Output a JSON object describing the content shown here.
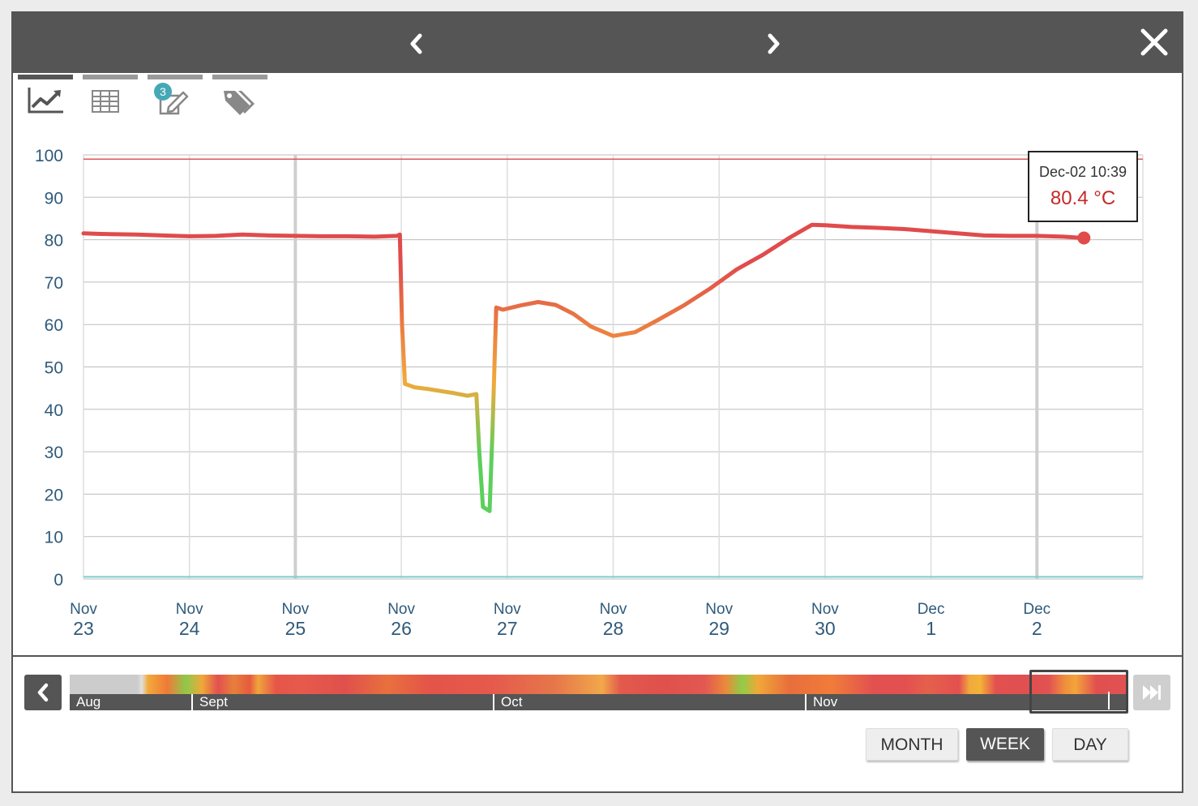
{
  "toolbar": {
    "prev_icon": "chevron-left-icon",
    "next_icon": "chevron-right-icon",
    "close_icon": "close-icon"
  },
  "tabs": [
    {
      "name": "chart",
      "icon": "line-chart-icon",
      "active": true
    },
    {
      "name": "table",
      "icon": "table-icon",
      "active": false
    },
    {
      "name": "notes",
      "icon": "edit-icon",
      "badge": "3",
      "active": false
    },
    {
      "name": "tags",
      "icon": "tags-icon",
      "active": false
    }
  ],
  "tooltip": {
    "date": "Dec-02 10:39",
    "value": "80.4 °C"
  },
  "chart_data": {
    "type": "line",
    "y_ticks": [
      "100",
      "90",
      "80",
      "70",
      "60",
      "50",
      "40",
      "30",
      "20",
      "10",
      "0"
    ],
    "ylim": [
      0,
      100
    ],
    "x_ticks": [
      {
        "month": "Nov",
        "day": "23"
      },
      {
        "month": "Nov",
        "day": "24"
      },
      {
        "month": "Nov",
        "day": "25"
      },
      {
        "month": "Nov",
        "day": "26"
      },
      {
        "month": "Nov",
        "day": "27"
      },
      {
        "month": "Nov",
        "day": "28"
      },
      {
        "month": "Nov",
        "day": "29"
      },
      {
        "month": "Nov",
        "day": "30"
      },
      {
        "month": "Dec",
        "day": "1"
      },
      {
        "month": "Dec",
        "day": "2"
      }
    ],
    "upper_threshold": 99,
    "lower_threshold": 0.5,
    "threshold_colors": {
      "upper": "#e05555",
      "lower": "#7ccfcf"
    },
    "color_scale": {
      "high": "#e04b4b",
      "mid": "#f2a93b",
      "low": "#5ccf5c"
    },
    "series": [
      {
        "unit": "°C",
        "points": [
          [
            "Nov 23 00:00",
            81.5
          ],
          [
            "Nov 23 06:00",
            81.3
          ],
          [
            "Nov 23 12:00",
            81.2
          ],
          [
            "Nov 23 18:00",
            81.0
          ],
          [
            "Nov 24 00:00",
            80.8
          ],
          [
            "Nov 24 06:00",
            80.9
          ],
          [
            "Nov 24 12:00",
            81.2
          ],
          [
            "Nov 24 18:00",
            81.0
          ],
          [
            "Nov 25 00:00",
            80.9
          ],
          [
            "Nov 25 06:00",
            80.8
          ],
          [
            "Nov 25 12:00",
            80.8
          ],
          [
            "Nov 25 18:00",
            80.7
          ],
          [
            "Nov 25 23:00",
            80.9
          ],
          [
            "Nov 25 23:40",
            81.2
          ],
          [
            "Nov 26 00:10",
            60.0
          ],
          [
            "Nov 26 00:50",
            46.0
          ],
          [
            "Nov 26 03:00",
            45.2
          ],
          [
            "Nov 26 06:00",
            44.8
          ],
          [
            "Nov 26 09:00",
            44.3
          ],
          [
            "Nov 26 12:00",
            43.8
          ],
          [
            "Nov 26 15:00",
            43.2
          ],
          [
            "Nov 26 17:00",
            43.6
          ],
          [
            "Nov 26 17:40",
            30.0
          ],
          [
            "Nov 26 18:30",
            17.0
          ],
          [
            "Nov 26 20:00",
            16.0
          ],
          [
            "Nov 26 20:40",
            35.0
          ],
          [
            "Nov 26 21:30",
            64.0
          ],
          [
            "Nov 26 23:00",
            63.5
          ],
          [
            "Nov 27 03:00",
            64.5
          ],
          [
            "Nov 27 07:00",
            65.3
          ],
          [
            "Nov 27 11:00",
            64.6
          ],
          [
            "Nov 27 15:00",
            62.5
          ],
          [
            "Nov 27 19:00",
            59.5
          ],
          [
            "Nov 28 00:00",
            57.3
          ],
          [
            "Nov 28 05:00",
            58.2
          ],
          [
            "Nov 28 10:00",
            61.0
          ],
          [
            "Nov 28 16:00",
            64.5
          ],
          [
            "Nov 28 22:00",
            68.5
          ],
          [
            "Nov 29 04:00",
            73.0
          ],
          [
            "Nov 29 10:00",
            76.5
          ],
          [
            "Nov 29 16:00",
            80.5
          ],
          [
            "Nov 29 21:00",
            83.5
          ],
          [
            "Nov 30 00:00",
            83.4
          ],
          [
            "Nov 30 06:00",
            83.0
          ],
          [
            "Nov 30 12:00",
            82.8
          ],
          [
            "Nov 30 18:00",
            82.5
          ],
          [
            "Dec 1 00:00",
            82.0
          ],
          [
            "Dec 1 06:00",
            81.5
          ],
          [
            "Dec 1 12:00",
            81.0
          ],
          [
            "Dec 1 18:00",
            80.9
          ],
          [
            "Dec 2 00:00",
            80.9
          ],
          [
            "Dec 2 06:00",
            80.7
          ],
          [
            "Dec 2 10:39",
            80.4
          ]
        ]
      }
    ]
  },
  "timeline": {
    "months": [
      "Aug",
      "Sept",
      "Oct",
      "Nov"
    ],
    "prev_icon": "chevron-left-icon",
    "end_icon": "skip-to-end-icon"
  },
  "ranges": {
    "month": "MONTH",
    "week": "WEEK",
    "day": "DAY",
    "selected": "WEEK"
  }
}
